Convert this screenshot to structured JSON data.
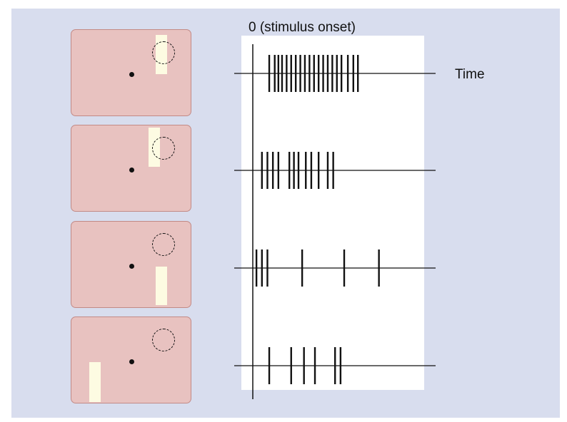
{
  "labels": {
    "onset": "0 (stimulus onset)",
    "time": "Time"
  },
  "trials": [
    {
      "stimulus_position": "over-receptive-field",
      "spike_times": [
        0.09,
        0.12,
        0.14,
        0.16,
        0.185,
        0.21,
        0.235,
        0.26,
        0.285,
        0.31,
        0.335,
        0.36,
        0.385,
        0.41,
        0.435,
        0.46,
        0.485,
        0.52,
        0.55,
        0.575
      ]
    },
    {
      "stimulus_position": "partially-overlapping",
      "spike_times": [
        0.05,
        0.08,
        0.11,
        0.14,
        0.2,
        0.225,
        0.25,
        0.29,
        0.32,
        0.36,
        0.41,
        0.44
      ]
    },
    {
      "stimulus_position": "near-below",
      "spike_times": [
        0.02,
        0.05,
        0.08,
        0.27,
        0.5,
        0.69
      ]
    },
    {
      "stimulus_position": "far-lower-left",
      "spike_times": [
        0.09,
        0.21,
        0.28,
        0.34,
        0.45,
        0.48
      ]
    }
  ],
  "colors": {
    "figure_background": "#d8ddee",
    "panel_fill": "#e8c2c0",
    "stimulus_bar": "#fdfbe2",
    "spike": "#111111"
  }
}
